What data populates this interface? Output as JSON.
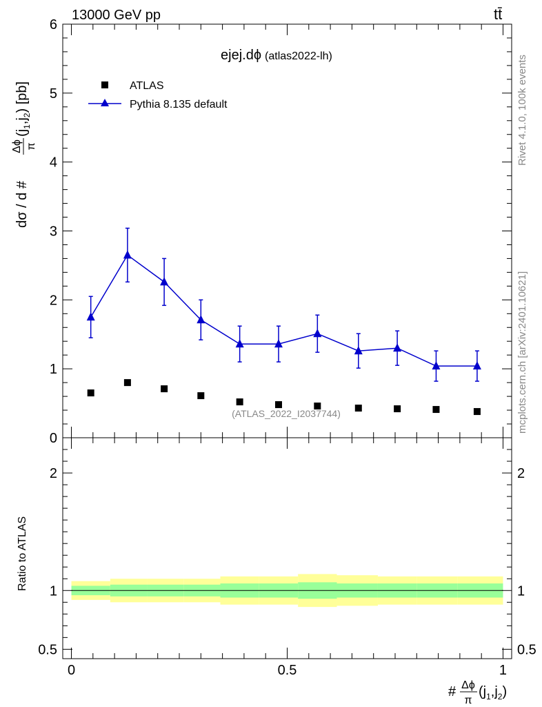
{
  "header": {
    "energy_label": "13000 GeV pp",
    "process_label": "tt̄"
  },
  "side_labels": {
    "rivet": "Rivet 4.1.0,  100k events",
    "mcplots": "mcplots.cern.ch [arXiv:2401.10621]"
  },
  "chart_data": {
    "type": "scatter",
    "title": "ejej.dϕ",
    "subtitle": "(atlas2022-lh)",
    "watermark": "(ATLAS_2022_I2037744)",
    "ylabel_parts": {
      "prefix": "dσ / d #",
      "frac_num": "Δϕ",
      "frac_den": "π",
      "suffix": "(j",
      "sub1": "1",
      "mid": ",j",
      "sub2": "2",
      "close": ") [pb]"
    },
    "xlabel_parts": {
      "prefix": "#",
      "frac_num": "Δϕ",
      "frac_den": "π",
      "suffix": "(j",
      "sub1": "1",
      "mid": ",j",
      "sub2": "2",
      "close": ")"
    },
    "xlim": [
      -0.02,
      1.02
    ],
    "ylim": [
      0,
      6
    ],
    "yticks": [
      "0",
      "1",
      "2",
      "3",
      "4",
      "5",
      "6"
    ],
    "xticks": [
      "0",
      "0.5",
      "1"
    ],
    "legend_position": "top-left",
    "series": [
      {
        "name": "ATLAS",
        "marker": "square",
        "color": "#000000",
        "x": [
          0.045,
          0.13,
          0.215,
          0.3,
          0.39,
          0.48,
          0.57,
          0.665,
          0.755,
          0.845,
          0.94
        ],
        "y": [
          0.65,
          0.8,
          0.71,
          0.61,
          0.52,
          0.48,
          0.46,
          0.43,
          0.42,
          0.41,
          0.38
        ]
      },
      {
        "name": "Pythia 8.135 default",
        "marker": "triangle",
        "color": "#0000cc",
        "x": [
          0.045,
          0.13,
          0.215,
          0.3,
          0.39,
          0.48,
          0.57,
          0.665,
          0.755,
          0.845,
          0.94
        ],
        "y": [
          1.75,
          2.65,
          2.26,
          1.71,
          1.36,
          1.36,
          1.51,
          1.26,
          1.3,
          1.04,
          1.04
        ],
        "yerr": [
          0.3,
          0.39,
          0.34,
          0.29,
          0.26,
          0.26,
          0.27,
          0.25,
          0.25,
          0.22,
          0.22
        ]
      }
    ],
    "ratio": {
      "ylabel": "Ratio to ATLAS",
      "ylim": [
        0.42,
        2.3
      ],
      "yticks": [
        "0.5",
        "1",
        "2"
      ],
      "bands": [
        {
          "xlo": 0.0,
          "xhi": 0.09,
          "inner": 0.04,
          "outer": 0.08
        },
        {
          "xlo": 0.09,
          "xhi": 0.175,
          "inner": 0.05,
          "outer": 0.1
        },
        {
          "xlo": 0.175,
          "xhi": 0.26,
          "inner": 0.05,
          "outer": 0.1
        },
        {
          "xlo": 0.26,
          "xhi": 0.345,
          "inner": 0.05,
          "outer": 0.1
        },
        {
          "xlo": 0.345,
          "xhi": 0.435,
          "inner": 0.06,
          "outer": 0.12
        },
        {
          "xlo": 0.435,
          "xhi": 0.525,
          "inner": 0.06,
          "outer": 0.12
        },
        {
          "xlo": 0.525,
          "xhi": 0.615,
          "inner": 0.07,
          "outer": 0.14
        },
        {
          "xlo": 0.615,
          "xhi": 0.71,
          "inner": 0.06,
          "outer": 0.13
        },
        {
          "xlo": 0.71,
          "xhi": 0.8,
          "inner": 0.06,
          "outer": 0.12
        },
        {
          "xlo": 0.8,
          "xhi": 0.895,
          "inner": 0.06,
          "outer": 0.12
        },
        {
          "xlo": 0.895,
          "xhi": 1.0,
          "inner": 0.06,
          "outer": 0.12
        }
      ],
      "band_colors": {
        "inner": "#99ff99",
        "outer": "#ffff99"
      }
    }
  }
}
